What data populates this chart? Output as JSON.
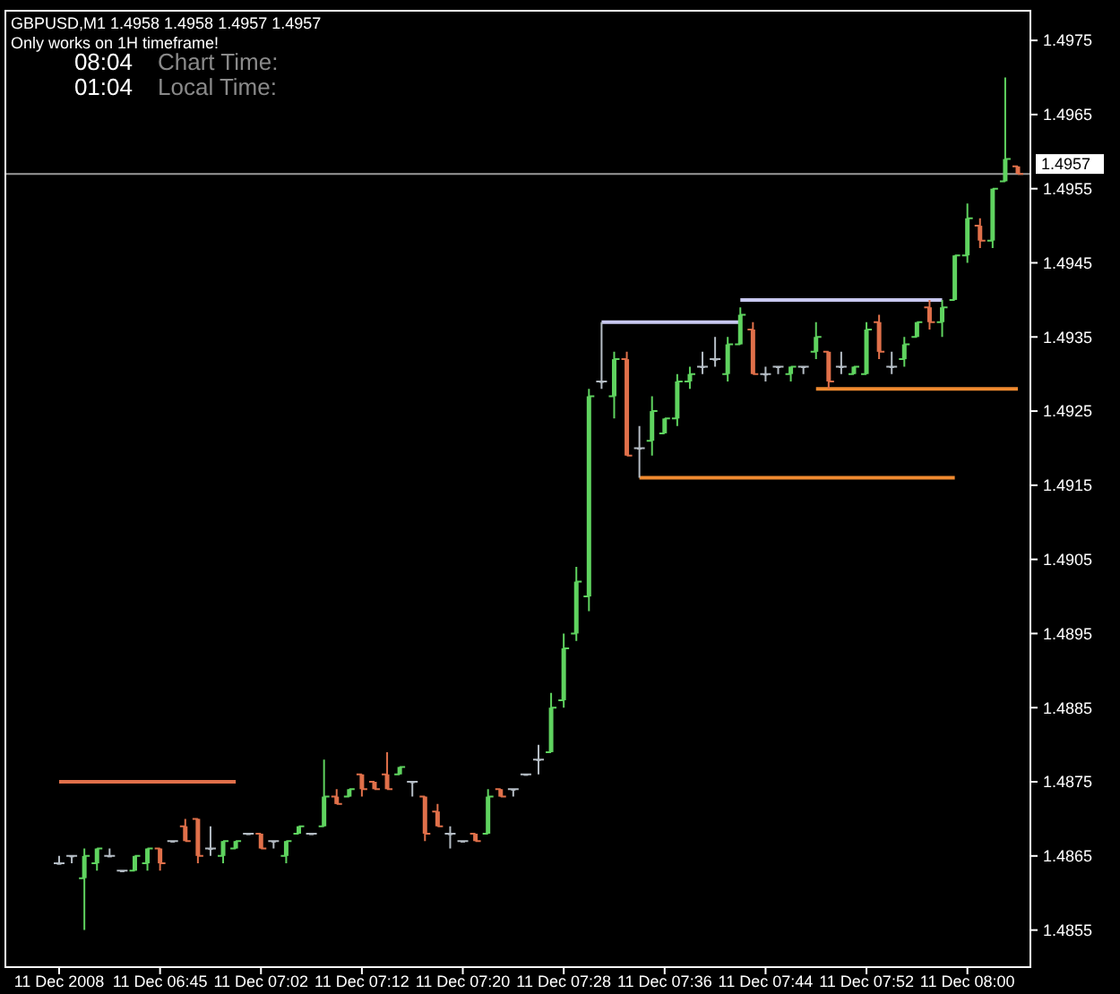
{
  "chart_data": {
    "type": "candlestick",
    "title": "GBPUSD,M1  1.4958 1.4958 1.4957 1.4957",
    "annotations": [
      "Only works on 1H timeframe!",
      "08:04",
      "Chart Time:",
      "01:04",
      "Local Time:"
    ],
    "categories": [
      "11 Dec 2008",
      null,
      null,
      null,
      null,
      null,
      null,
      null,
      "11 Dec 06:45",
      null,
      null,
      null,
      null,
      null,
      null,
      null,
      "11 Dec 07:02",
      null,
      null,
      null,
      null,
      null,
      null,
      null,
      "11 Dec 07:12",
      null,
      null,
      null,
      null,
      null,
      null,
      null,
      "11 Dec 07:20",
      null,
      null,
      null,
      null,
      null,
      null,
      null,
      "11 Dec 07:28",
      null,
      null,
      null,
      null,
      null,
      null,
      null,
      "11 Dec 07:36",
      null,
      null,
      null,
      null,
      null,
      null,
      null,
      "11 Dec 07:44",
      null,
      null,
      null,
      null,
      null,
      null,
      null,
      "11 Dec 07:52",
      null,
      null,
      null,
      null,
      null,
      null,
      null,
      "11 Dec 08:00",
      null,
      null,
      null,
      null
    ],
    "ohlc": [
      [
        1.4864,
        1.4865,
        1.4864,
        1.4864
      ],
      [
        1.4865,
        1.4865,
        1.4864,
        1.4865
      ],
      [
        1.4862,
        1.4866,
        1.4855,
        1.4865
      ],
      [
        1.4864,
        1.4866,
        1.4863,
        1.4866
      ],
      [
        1.4865,
        1.4866,
        1.4865,
        1.4865
      ],
      [
        1.4863,
        1.4863,
        1.4863,
        1.4863
      ],
      [
        1.4863,
        1.4865,
        1.4863,
        1.4865
      ],
      [
        1.4864,
        1.4866,
        1.4863,
        1.4866
      ],
      [
        1.4866,
        1.4866,
        1.4863,
        1.4864
      ],
      [
        1.4867,
        1.4867,
        1.4867,
        1.4867
      ],
      [
        1.4869,
        1.487,
        1.4867,
        1.4867
      ],
      [
        1.487,
        1.487,
        1.4864,
        1.4865
      ],
      [
        1.4866,
        1.4869,
        1.4865,
        1.4866
      ],
      [
        1.4865,
        1.4867,
        1.4864,
        1.4867
      ],
      [
        1.4866,
        1.4867,
        1.4866,
        1.4867
      ],
      [
        1.4868,
        1.4868,
        1.4868,
        1.4868
      ],
      [
        1.4868,
        1.4868,
        1.4866,
        1.4866
      ],
      [
        1.4867,
        1.4867,
        1.4866,
        1.4867
      ],
      [
        1.4865,
        1.4867,
        1.4864,
        1.4867
      ],
      [
        1.4868,
        1.4869,
        1.4868,
        1.4869
      ],
      [
        1.4868,
        1.4868,
        1.4868,
        1.4868
      ],
      [
        1.4869,
        1.4878,
        1.4869,
        1.4873
      ],
      [
        1.4873,
        1.4874,
        1.4872,
        1.4872
      ],
      [
        1.4873,
        1.4874,
        1.4873,
        1.4874
      ],
      [
        1.4876,
        1.4876,
        1.4873,
        1.4874
      ],
      [
        1.4875,
        1.4875,
        1.4874,
        1.4874
      ],
      [
        1.4876,
        1.4879,
        1.4874,
        1.4874
      ],
      [
        1.4876,
        1.4877,
        1.4876,
        1.4877
      ],
      [
        1.4875,
        1.4875,
        1.4873,
        1.4875
      ],
      [
        1.4873,
        1.4873,
        1.4867,
        1.4868
      ],
      [
        1.4871,
        1.4872,
        1.4869,
        1.4869
      ],
      [
        1.4868,
        1.4869,
        1.4866,
        1.4868
      ],
      [
        1.4867,
        1.4867,
        1.4867,
        1.4867
      ],
      [
        1.4868,
        1.4868,
        1.4867,
        1.4867
      ],
      [
        1.4868,
        1.4874,
        1.4868,
        1.4873
      ],
      [
        1.4874,
        1.4874,
        1.4873,
        1.4873
      ],
      [
        1.4874,
        1.4874,
        1.4873,
        1.4874
      ],
      [
        1.4876,
        1.4876,
        1.4876,
        1.4876
      ],
      [
        1.4878,
        1.488,
        1.4876,
        1.4878
      ],
      [
        1.4879,
        1.4887,
        1.4879,
        1.4885
      ],
      [
        1.4886,
        1.4895,
        1.4885,
        1.4893
      ],
      [
        1.4895,
        1.4904,
        1.4894,
        1.4902
      ],
      [
        1.49,
        1.4928,
        1.4898,
        1.4927
      ],
      [
        1.4929,
        1.4937,
        1.4928,
        1.4929
      ],
      [
        1.4927,
        1.4933,
        1.4924,
        1.4932
      ],
      [
        1.4932,
        1.4933,
        1.4919,
        1.4919
      ],
      [
        1.492,
        1.4923,
        1.4916,
        1.492
      ],
      [
        1.4921,
        1.4927,
        1.4919,
        1.4925
      ],
      [
        1.4922,
        1.4924,
        1.4922,
        1.4924
      ],
      [
        1.4924,
        1.493,
        1.4923,
        1.4929
      ],
      [
        1.4929,
        1.4931,
        1.4928,
        1.493
      ],
      [
        1.4931,
        1.4933,
        1.493,
        1.4931
      ],
      [
        1.4932,
        1.4935,
        1.4931,
        1.4932
      ],
      [
        1.493,
        1.4935,
        1.4929,
        1.4934
      ],
      [
        1.4934,
        1.4939,
        1.4934,
        1.4938
      ],
      [
        1.4936,
        1.4937,
        1.493,
        1.493
      ],
      [
        1.493,
        1.4931,
        1.4929,
        1.493
      ],
      [
        1.4931,
        1.4931,
        1.493,
        1.4931
      ],
      [
        1.493,
        1.4931,
        1.4929,
        1.4931
      ],
      [
        1.4931,
        1.4931,
        1.493,
        1.4931
      ],
      [
        1.4933,
        1.4937,
        1.4932,
        1.4935
      ],
      [
        1.4933,
        1.4933,
        1.4928,
        1.4929
      ],
      [
        1.4931,
        1.4933,
        1.493,
        1.4931
      ],
      [
        1.493,
        1.4931,
        1.493,
        1.4931
      ],
      [
        1.493,
        1.4937,
        1.493,
        1.4936
      ],
      [
        1.4937,
        1.4938,
        1.4932,
        1.4933
      ],
      [
        1.4931,
        1.4933,
        1.493,
        1.4931
      ],
      [
        1.4932,
        1.4935,
        1.4931,
        1.4934
      ],
      [
        1.4935,
        1.4937,
        1.4935,
        1.4937
      ],
      [
        1.4939,
        1.494,
        1.4936,
        1.4937
      ],
      [
        1.4937,
        1.494,
        1.4935,
        1.4939
      ],
      [
        1.494,
        1.4946,
        1.494,
        1.4946
      ],
      [
        1.4946,
        1.4953,
        1.4945,
        1.4951
      ],
      [
        1.495,
        1.4951,
        1.4947,
        1.4948
      ],
      [
        1.4948,
        1.4955,
        1.4947,
        1.4955
      ],
      [
        1.4956,
        1.497,
        1.4956,
        1.4959
      ],
      [
        1.4958,
        1.4958,
        1.4957,
        1.4957
      ]
    ],
    "colors": [
      "#b4bcc4",
      "#b4bcc4",
      "#5fd35f",
      "#5fd35f",
      "#b4bcc4",
      "#b4bcc4",
      "#5fd35f",
      "#5fd35f",
      "#e0704a",
      "#b4bcc4",
      "#e0704a",
      "#e0704a",
      "#b4bcc4",
      "#5fd35f",
      "#5fd35f",
      "#b4bcc4",
      "#e0704a",
      "#b4bcc4",
      "#5fd35f",
      "#5fd35f",
      "#b4bcc4",
      "#5fd35f",
      "#e0704a",
      "#5fd35f",
      "#e0704a",
      "#e0704a",
      "#e0704a",
      "#5fd35f",
      "#b4bcc4",
      "#e0704a",
      "#e0704a",
      "#b4bcc4",
      "#b4bcc4",
      "#e0704a",
      "#5fd35f",
      "#e0704a",
      "#b4bcc4",
      "#b4bcc4",
      "#b4bcc4",
      "#5fd35f",
      "#5fd35f",
      "#5fd35f",
      "#5fd35f",
      "#b4bcc4",
      "#5fd35f",
      "#e0704a",
      "#b4bcc4",
      "#5fd35f",
      "#5fd35f",
      "#5fd35f",
      "#5fd35f",
      "#b4bcc4",
      "#b4bcc4",
      "#5fd35f",
      "#5fd35f",
      "#e0704a",
      "#b4bcc4",
      "#b4bcc4",
      "#5fd35f",
      "#b4bcc4",
      "#5fd35f",
      "#e0704a",
      "#b4bcc4",
      "#5fd35f",
      "#5fd35f",
      "#e0704a",
      "#b4bcc4",
      "#5fd35f",
      "#5fd35f",
      "#e0704a",
      "#5fd35f",
      "#5fd35f",
      "#5fd35f",
      "#e0704a",
      "#5fd35f",
      "#5fd35f",
      "#e0704a"
    ],
    "ylim": [
      1.485,
      1.4979
    ],
    "yticks": [
      1.4855,
      1.4865,
      1.4875,
      1.4885,
      1.4895,
      1.4905,
      1.4915,
      1.4925,
      1.4935,
      1.4945,
      1.4955,
      1.4965,
      1.4975
    ],
    "ref_lines": [
      {
        "axis": "y",
        "value": 1.4957,
        "label": "1.4957",
        "color": "#9a9a9a"
      }
    ],
    "series": [
      {
        "type": "line",
        "color": "#e0704a",
        "values": [
          1.4875,
          1.4875,
          1.4875,
          1.4875,
          1.4875,
          1.4875,
          1.4875,
          1.4875,
          1.4875,
          1.4875,
          1.4875,
          1.4875,
          1.4875,
          1.4875,
          1.4875,
          null,
          null,
          null,
          null,
          null,
          null,
          null,
          null,
          null,
          null,
          null,
          null,
          null,
          null,
          null,
          null,
          null,
          null,
          null,
          null,
          null,
          null,
          null,
          null,
          null,
          null,
          null,
          null,
          null,
          null,
          null,
          null,
          null,
          null,
          null,
          null,
          null,
          null,
          null,
          null,
          null,
          null,
          null,
          null,
          null,
          null,
          null,
          null,
          null,
          null,
          null,
          null,
          null,
          null,
          null,
          null,
          null,
          null,
          null,
          null,
          null,
          null
        ]
      },
      {
        "type": "line",
        "color": "#c8c8f0",
        "values": [
          null,
          null,
          null,
          null,
          null,
          null,
          null,
          null,
          null,
          null,
          null,
          null,
          null,
          null,
          null,
          null,
          null,
          null,
          null,
          null,
          null,
          null,
          null,
          null,
          null,
          null,
          null,
          null,
          null,
          null,
          null,
          null,
          null,
          null,
          null,
          null,
          null,
          null,
          null,
          null,
          null,
          null,
          null,
          1.4937,
          1.4937,
          1.4937,
          1.4937,
          1.4937,
          1.4937,
          1.4937,
          1.4937,
          1.4937,
          1.4937,
          1.4937,
          1.4937,
          null,
          null,
          null,
          null,
          null,
          null,
          null,
          null,
          null,
          null,
          null,
          null,
          null,
          null,
          null,
          null,
          null,
          null,
          null,
          null,
          null,
          null
        ]
      },
      {
        "type": "line",
        "color": "#c8c8f0",
        "values": [
          null,
          null,
          null,
          null,
          null,
          null,
          null,
          null,
          null,
          null,
          null,
          null,
          null,
          null,
          null,
          null,
          null,
          null,
          null,
          null,
          null,
          null,
          null,
          null,
          null,
          null,
          null,
          null,
          null,
          null,
          null,
          null,
          null,
          null,
          null,
          null,
          null,
          null,
          null,
          null,
          null,
          null,
          null,
          null,
          null,
          null,
          null,
          null,
          null,
          null,
          null,
          null,
          null,
          null,
          1.494,
          1.494,
          1.494,
          1.494,
          1.494,
          1.494,
          1.494,
          1.494,
          1.494,
          1.494,
          1.494,
          1.494,
          1.494,
          1.494,
          1.494,
          1.494,
          1.494,
          null,
          null,
          null,
          null,
          null,
          null
        ]
      },
      {
        "type": "line",
        "color": "#f08a30",
        "values": [
          null,
          null,
          null,
          null,
          null,
          null,
          null,
          null,
          null,
          null,
          null,
          null,
          null,
          null,
          null,
          null,
          null,
          null,
          null,
          null,
          null,
          null,
          null,
          null,
          null,
          null,
          null,
          null,
          null,
          null,
          null,
          null,
          null,
          null,
          null,
          null,
          null,
          null,
          null,
          null,
          null,
          null,
          null,
          null,
          null,
          null,
          1.4916,
          1.4916,
          1.4916,
          1.4916,
          1.4916,
          1.4916,
          1.4916,
          1.4916,
          1.4916,
          1.4916,
          1.4916,
          1.4916,
          1.4916,
          1.4916,
          1.4916,
          1.4916,
          1.4916,
          1.4916,
          1.4916,
          1.4916,
          1.4916,
          1.4916,
          1.4916,
          1.4916,
          1.4916,
          1.4916,
          null,
          null,
          null,
          null,
          null
        ]
      },
      {
        "type": "line",
        "color": "#f08a30",
        "values": [
          null,
          null,
          null,
          null,
          null,
          null,
          null,
          null,
          null,
          null,
          null,
          null,
          null,
          null,
          null,
          null,
          null,
          null,
          null,
          null,
          null,
          null,
          null,
          null,
          null,
          null,
          null,
          null,
          null,
          null,
          null,
          null,
          null,
          null,
          null,
          null,
          null,
          null,
          null,
          null,
          null,
          null,
          null,
          null,
          null,
          null,
          null,
          null,
          null,
          null,
          null,
          null,
          null,
          null,
          null,
          null,
          null,
          null,
          null,
          null,
          1.4928,
          1.4928,
          1.4928,
          1.4928,
          1.4928,
          1.4928,
          1.4928,
          1.4928,
          1.4928,
          1.4928,
          1.4928,
          1.4928,
          1.4928,
          1.4928,
          1.4928,
          1.4928,
          1.4928
        ]
      }
    ]
  }
}
